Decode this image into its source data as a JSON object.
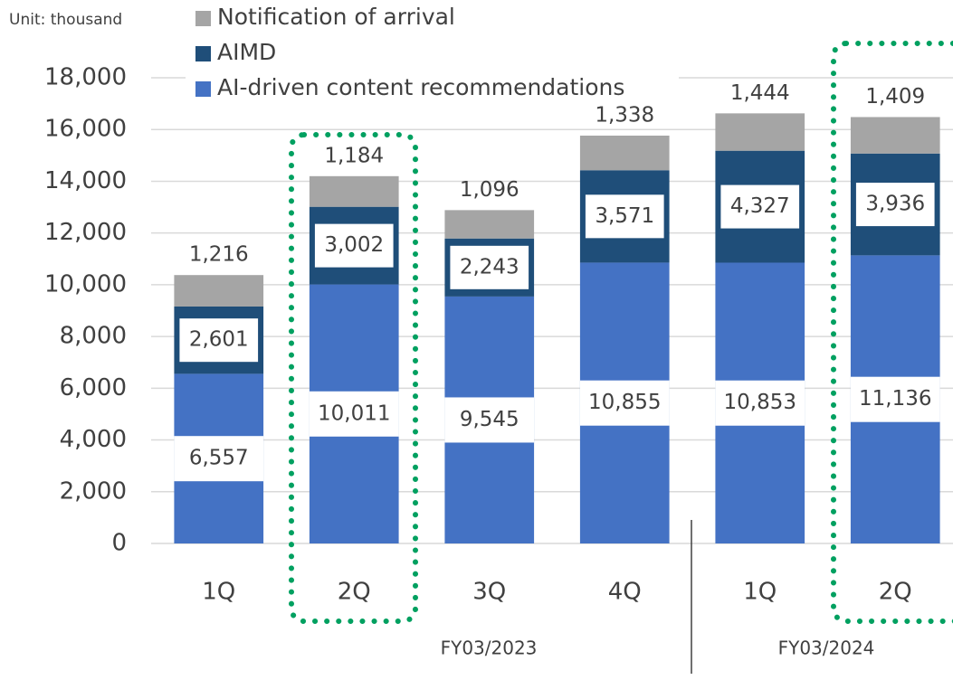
{
  "chart_data": {
    "type": "stacked_bar",
    "unit_label": "Unit: thousand",
    "categories": [
      "1Q",
      "2Q",
      "3Q",
      "4Q",
      "1Q",
      "2Q"
    ],
    "groups": [
      "FY03/2023",
      "FY03/2024"
    ],
    "series": [
      {
        "name": "AI-driven content recommendations",
        "color": "#4472c4",
        "values": [
          6557,
          10011,
          9545,
          10855,
          10853,
          11136
        ],
        "value_labels": [
          "6,557",
          "10,011",
          "9,545",
          "10,855",
          "10,853",
          "11,136"
        ]
      },
      {
        "name": "AIMD",
        "color": "#1f4e79",
        "values": [
          2601,
          3002,
          2243,
          3571,
          4327,
          3936
        ],
        "value_labels": [
          "2,601",
          "3,002",
          "2,243",
          "3,571",
          "4,327",
          "3,936"
        ]
      },
      {
        "name": "Notification of arrival",
        "color": "#a5a5a5",
        "values": [
          1216,
          1184,
          1096,
          1338,
          1444,
          1409
        ],
        "value_labels": [
          "1,216",
          "1,184",
          "1,096",
          "1,338",
          "1,444",
          "1,409"
        ]
      }
    ],
    "ylim": [
      0,
      18000
    ],
    "yticks": [
      0,
      {
        "value": 2000,
        "label": "2,000"
      },
      {
        "value": 4000,
        "label": "4,000"
      },
      {
        "value": 6000,
        "label": "6,000"
      },
      {
        "value": 8000,
        "label": "8,000"
      },
      {
        "value": 10000,
        "label": "10,000"
      },
      {
        "value": 12000,
        "label": "12,000"
      },
      {
        "value": 14000,
        "label": "14,000"
      },
      {
        "value": 16000,
        "label": "16,000"
      },
      {
        "value": 18000,
        "label": "18,000"
      }
    ],
    "grid": true
  }
}
